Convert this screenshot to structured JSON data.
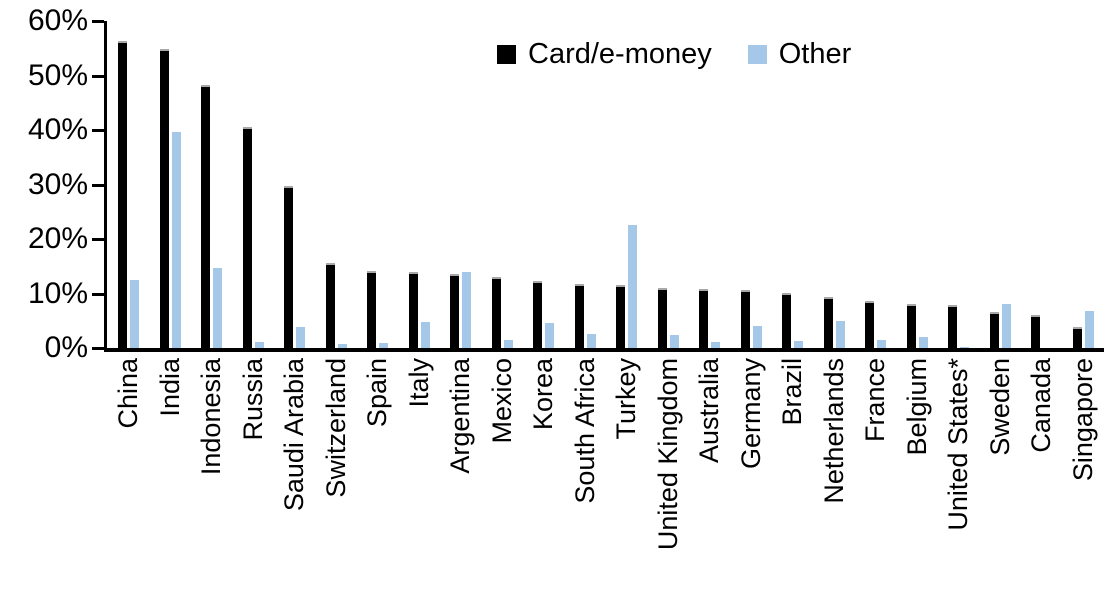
{
  "chart_data": {
    "type": "bar",
    "title": "",
    "xlabel": "",
    "ylabel": "",
    "ylim": [
      0,
      60
    ],
    "ytick_labels": [
      "0%",
      "10%",
      "20%",
      "30%",
      "40%",
      "50%",
      "60%"
    ],
    "ytick_values": [
      0,
      10,
      20,
      30,
      40,
      50,
      60
    ],
    "grid": false,
    "legend_position": "top-center",
    "categories": [
      "China",
      "India",
      "Indonesia",
      "Russia",
      "Saudi Arabia",
      "Switzerland",
      "Spain",
      "Italy",
      "Argentina",
      "Mexico",
      "Korea",
      "South Africa",
      "Turkey",
      "United Kingdom",
      "Australia",
      "Germany",
      "Brazil",
      "Netherlands",
      "France",
      "Belgium",
      "United States*",
      "Sweden",
      "Canada",
      "Singapore"
    ],
    "series": [
      {
        "name": "Card/e-money",
        "color": "#000000",
        "values": [
          56.3,
          54.9,
          48.2,
          40.5,
          29.8,
          15.6,
          14.1,
          14.0,
          13.5,
          13.0,
          12.3,
          11.8,
          11.6,
          11.1,
          10.8,
          10.6,
          10.0,
          9.3,
          8.7,
          8.1,
          7.8,
          6.6,
          6.0,
          3.9
        ]
      },
      {
        "name": "Other",
        "color": "#A5C8E8",
        "values": [
          12.4,
          39.7,
          14.6,
          1.1,
          3.9,
          0.8,
          1.0,
          4.8,
          13.9,
          1.4,
          4.6,
          2.5,
          22.5,
          2.4,
          1.1,
          4.0,
          1.2,
          4.9,
          1.5,
          2.1,
          0.2,
          8.1,
          0.0,
          6.7
        ]
      }
    ]
  }
}
